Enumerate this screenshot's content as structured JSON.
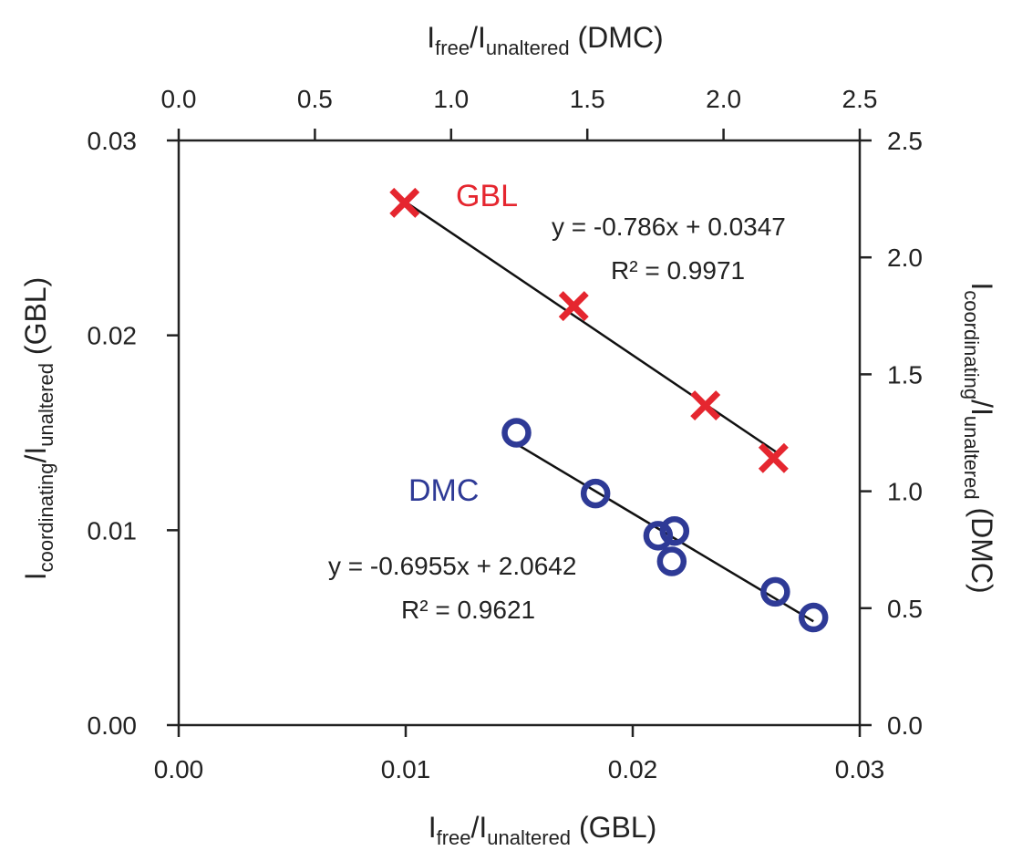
{
  "chart_data": {
    "type": "scatter",
    "title": "",
    "axes": {
      "bottom": {
        "label_base": "I",
        "label_sub1": "free",
        "label_mid": "/I",
        "label_sub2": "unaltered",
        "label_tail": " (GBL)",
        "range": [
          0,
          0.03
        ],
        "ticks": [
          0.0,
          0.01,
          0.02,
          0.03
        ],
        "tick_labels": [
          "0.00",
          "0.01",
          "0.02",
          "0.03"
        ]
      },
      "left": {
        "label_base": "I",
        "label_sub1": "coordinating",
        "label_mid": "/I",
        "label_sub2": "unaltered",
        "label_tail": " (GBL)",
        "range": [
          0,
          0.03
        ],
        "ticks": [
          0.0,
          0.01,
          0.02,
          0.03
        ],
        "tick_labels": [
          "0.00",
          "0.01",
          "0.02",
          "0.03"
        ]
      },
      "top": {
        "label_base": "I",
        "label_sub1": "free",
        "label_mid": "/I",
        "label_sub2": "unaltered",
        "label_tail": " (DMC)",
        "range": [
          0,
          2.5
        ],
        "ticks": [
          0.0,
          0.5,
          1.0,
          1.5,
          2.0,
          2.5
        ],
        "tick_labels": [
          "0.0",
          "0.5",
          "1.0",
          "1.5",
          "2.0",
          "2.5"
        ]
      },
      "right": {
        "label_base": "I",
        "label_sub1": "coordinating",
        "label_mid": "/I",
        "label_sub2": "unaltered",
        "label_tail": " (DMC)",
        "range": [
          0,
          2.5
        ],
        "ticks": [
          0.0,
          0.5,
          1.0,
          1.5,
          2.0,
          2.5
        ],
        "tick_labels": [
          "0.0",
          "0.5",
          "1.0",
          "1.5",
          "2.0",
          "2.5"
        ]
      }
    },
    "series": [
      {
        "name": "GBL",
        "color": "#e5262f",
        "marker": "x",
        "axes": "bottom-left",
        "x": [
          0.00995,
          0.0174,
          0.0232,
          0.0262
        ],
        "y": [
          0.0268,
          0.0215,
          0.0164,
          0.0137
        ],
        "fit": {
          "slope": -0.786,
          "intercept": 0.0347,
          "x_range": [
            0.00995,
            0.0263
          ]
        },
        "equation": "y = -0.786x + 0.0347",
        "r2": "R² = 0.9971"
      },
      {
        "name": "DMC",
        "color": "#2e3a96",
        "marker": "circle",
        "axes": "top-right",
        "x": [
          1.24,
          1.53,
          1.76,
          1.82,
          1.81,
          2.19,
          2.33
        ],
        "y": [
          1.25,
          0.99,
          0.81,
          0.83,
          0.7,
          0.57,
          0.46
        ],
        "fit": {
          "slope": -0.6955,
          "intercept": 2.0642,
          "x_range": [
            1.24,
            2.33
          ]
        },
        "equation": "y = -0.6955x + 2.0642",
        "r2": "R² = 0.9621"
      }
    ],
    "grid": false,
    "legend": "none"
  }
}
